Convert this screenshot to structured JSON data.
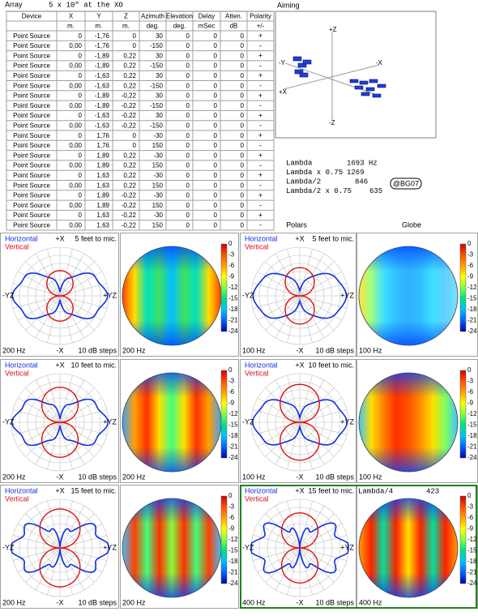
{
  "array_panel": {
    "label": "Array",
    "description": "5 x 10\" at the XO"
  },
  "table": {
    "headers": [
      "Device",
      "X",
      "Y",
      "Z",
      "Azimuth",
      "Elevation",
      "Delay",
      "Atten.",
      "Polarity"
    ],
    "units": [
      "m.",
      "m.",
      "m.",
      "deg.",
      "deg.",
      "mSec",
      "dB",
      "+/-"
    ],
    "rows": [
      [
        "Point Source",
        "0",
        "-1,76",
        "0",
        "30",
        "0",
        "0",
        "0",
        "+"
      ],
      [
        "Point Source",
        "0,00",
        "-1,76",
        "0",
        "-150",
        "0",
        "0",
        "0",
        "-"
      ],
      [
        "Point Source",
        "0",
        "-1,89",
        "0,22",
        "30",
        "0",
        "0",
        "0",
        "+"
      ],
      [
        "Point Source",
        "0,00",
        "-1,89",
        "0,22",
        "-150",
        "0",
        "0",
        "0",
        "-"
      ],
      [
        "Point Source",
        "0",
        "-1,63",
        "0,22",
        "30",
        "0",
        "0",
        "0",
        "+"
      ],
      [
        "Point Source",
        "0,00",
        "-1,63",
        "0,22",
        "-150",
        "0",
        "0",
        "0",
        "-"
      ],
      [
        "Point Source",
        "0",
        "-1,89",
        "-0,22",
        "30",
        "0",
        "0",
        "0",
        "+"
      ],
      [
        "Point Source",
        "0,00",
        "-1,89",
        "-0,22",
        "-150",
        "0",
        "0",
        "0",
        "-"
      ],
      [
        "Point Source",
        "0",
        "-1,63",
        "-0,22",
        "30",
        "0",
        "0",
        "0",
        "+"
      ],
      [
        "Point Source",
        "0,00",
        "-1,63",
        "-0,22",
        "-150",
        "0",
        "0",
        "0",
        "-"
      ],
      [
        "Point Source",
        "0",
        "1,76",
        "0",
        "-30",
        "0",
        "0",
        "0",
        "+"
      ],
      [
        "Point Source",
        "0,00",
        "1,76",
        "0",
        "150",
        "0",
        "0",
        "0",
        "-"
      ],
      [
        "Point Source",
        "0",
        "1,89",
        "0,22",
        "-30",
        "0",
        "0",
        "0",
        "+"
      ],
      [
        "Point Source",
        "0,00",
        "1,89",
        "0,22",
        "150",
        "0",
        "0",
        "0",
        "-"
      ],
      [
        "Point Source",
        "0",
        "1,63",
        "0,22",
        "-30",
        "0",
        "0",
        "0",
        "+"
      ],
      [
        "Point Source",
        "0,00",
        "1,63",
        "0,22",
        "150",
        "0",
        "0",
        "0",
        "-"
      ],
      [
        "Point Source",
        "0",
        "1,89",
        "-0,22",
        "-30",
        "0",
        "0",
        "0",
        "+"
      ],
      [
        "Point Source",
        "0,00",
        "1,89",
        "-0,22",
        "150",
        "0",
        "0",
        "0",
        "-"
      ],
      [
        "Point Source",
        "0",
        "1,63",
        "-0,22",
        "-30",
        "0",
        "0",
        "0",
        "+"
      ],
      [
        "Point Source",
        "0,00",
        "1,63",
        "-0,22",
        "150",
        "0",
        "0",
        "0",
        "-"
      ]
    ]
  },
  "aiming": {
    "label": "Aiming",
    "axis_labels": [
      "+Z",
      "-Y",
      "-X",
      "+X",
      "-Z"
    ]
  },
  "lambda": [
    {
      "label": "Lambda",
      "value": "1693 Hz"
    },
    {
      "label": "Lambda x 0.75",
      "value": "1269"
    },
    {
      "label": "Lambda/2",
      "value": "846"
    },
    {
      "label": "Lambda/2 x 0.75",
      "value": "635"
    }
  ],
  "badge": "@BG07",
  "column_headers": [
    "Polars",
    "Globe"
  ],
  "legend": [
    "Horizontal",
    "Vertical"
  ],
  "polar_axis_labels": {
    "top": "+X",
    "bottom": "-X",
    "left": "-YZ",
    "right": "+YZ"
  },
  "steps": "10 dB steps",
  "colorbar_ticks": [
    0,
    -3,
    -6,
    -9,
    -12,
    -15,
    -18,
    -21,
    -24
  ],
  "panels": [
    {
      "distance": "5 feet to mic.",
      "freq": "200 Hz"
    },
    {
      "distance": "5 feet to mic.",
      "freq": "100 Hz"
    },
    {
      "distance": "10 feet to mic.",
      "freq": "200 Hz"
    },
    {
      "distance": "10 feet to mic.",
      "freq": "100 Hz"
    },
    {
      "distance": "15 feet to mic.",
      "freq": "200 Hz"
    },
    {
      "distance": "15 feet to mic.",
      "freq": "400 Hz"
    }
  ],
  "lambda4": {
    "label": "Lambda/4",
    "value": "423"
  }
}
